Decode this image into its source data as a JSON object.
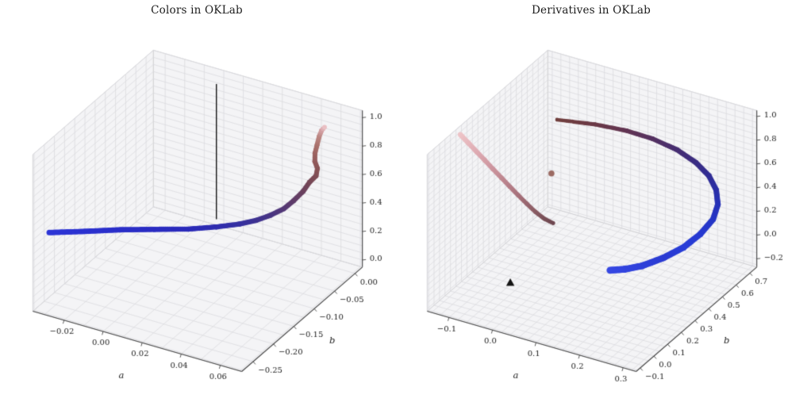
{
  "style": {
    "background": "#ffffff",
    "pane": "#f4f4f6",
    "pane_edge": "#cccccf",
    "grid": "#dadade",
    "spine": "#454545",
    "tick_text": "#1a1a1a",
    "title_text": "#1c1c1c"
  },
  "chart_data": [
    {
      "id": "colors",
      "type": "scatter",
      "subtype": "3d-scatter-curve",
      "title": "Colors in OKLab",
      "axes": {
        "x": {
          "label": "a",
          "lim": [
            -0.036,
            0.071
          ],
          "ticks": [
            -0.02,
            0.0,
            0.02,
            0.04,
            0.06
          ],
          "tick_labels": [
            "−0.02",
            "0.00",
            "0.02",
            "0.04",
            "0.06"
          ],
          "grid_step": 0.01
        },
        "y": {
          "label": "b",
          "lim": [
            -0.278,
            0.018
          ],
          "ticks": [
            0.0,
            -0.05,
            -0.1,
            -0.15,
            -0.2,
            -0.25
          ],
          "tick_labels": [
            "0.00",
            "−0.05",
            "−0.10",
            "−0.15",
            "−0.20",
            "−0.25"
          ],
          "grid_step": 0.025
        },
        "z": {
          "label": "",
          "lim": [
            -0.05,
            1.05
          ],
          "ticks": [
            0.0,
            0.2,
            0.4,
            0.6,
            0.8,
            1.0
          ],
          "tick_labels": [
            "0.0",
            "0.2",
            "0.4",
            "0.6",
            "0.8",
            "1.0"
          ],
          "grid_step": 0.05
        }
      },
      "series": [
        {
          "name": "gray-axis-line",
          "type": "line",
          "color": "#151515",
          "width": 1.4,
          "points": [
            [
              0.0,
              0.0,
              0.05
            ],
            [
              0.0,
              0.0,
              1.0
            ]
          ]
        },
        {
          "name": "gradient-curve",
          "type": "tube",
          "radius": [
            3.5,
            3.0
          ],
          "points": [
            [
              -0.033,
              -0.252,
              0.45,
              "#2d35d6"
            ],
            [
              -0.02,
              -0.228,
              0.45,
              "#2b31d0"
            ],
            [
              -0.007,
              -0.203,
              0.451,
              "#2a2ec9"
            ],
            [
              0.006,
              -0.181,
              0.451,
              "#2a2cc2"
            ],
            [
              0.019,
              -0.16,
              0.452,
              "#2b2bba"
            ],
            [
              0.029,
              -0.139,
              0.455,
              "#2f2daf"
            ],
            [
              0.037,
              -0.12,
              0.46,
              "#3530a2"
            ],
            [
              0.044,
              -0.114,
              0.498,
              "#3d3293"
            ],
            [
              0.05,
              -0.108,
              0.542,
              "#473585"
            ],
            [
              0.056,
              -0.103,
              0.6,
              "#533877"
            ],
            [
              0.06,
              -0.098,
              0.66,
              "#5f3c6a"
            ],
            [
              0.062,
              -0.084,
              0.7,
              "#6a415f"
            ],
            [
              0.0625,
              -0.071,
              0.733,
              "#754757"
            ],
            [
              0.064,
              -0.062,
              0.762,
              "#7f4d56"
            ],
            [
              0.063,
              -0.054,
              0.79,
              "#885356"
            ],
            [
              0.06,
              -0.046,
              0.808,
              "#91595a"
            ],
            [
              0.058,
              -0.036,
              0.832,
              "#9c6361"
            ],
            [
              0.057,
              -0.026,
              0.862,
              "#a9706b"
            ],
            [
              0.056,
              -0.016,
              0.893,
              "#ba8580"
            ],
            [
              0.0555,
              -0.008,
              0.912,
              "#d09da0"
            ],
            [
              0.056,
              -0.003,
              0.925,
              "#e9bfc3"
            ]
          ]
        }
      ]
    },
    {
      "id": "derivatives",
      "type": "scatter",
      "subtype": "3d-scatter-curve",
      "title": "Derivatives in OKLab",
      "axes": {
        "x": {
          "label": "a",
          "lim": [
            -0.15,
            0.33
          ],
          "ticks": [
            -0.1,
            0.0,
            0.1,
            0.2,
            0.3
          ],
          "tick_labels": [
            "−0.1",
            "0.0",
            "0.1",
            "0.2",
            "0.3"
          ],
          "grid_step": 0.02
        },
        "y": {
          "label": "b",
          "lim": [
            -0.13,
            0.75
          ],
          "ticks": [
            -0.1,
            0.0,
            0.1,
            0.2,
            0.3,
            0.4,
            0.5,
            0.6,
            0.7
          ],
          "tick_labels": [
            "−0.1",
            "0.0",
            "0.1",
            "0.2",
            "0.3",
            "0.4",
            "0.5",
            "0.6",
            "0.7"
          ],
          "grid_step": 0.04
        },
        "z": {
          "label": "",
          "lim": [
            -0.27,
            1.05
          ],
          "ticks": [
            -0.2,
            0.0,
            0.2,
            0.4,
            0.6,
            0.8,
            1.0
          ],
          "tick_labels": [
            "−0.2",
            "0.0",
            "0.2",
            "0.4",
            "0.6",
            "0.8",
            "1.0"
          ],
          "grid_step": 0.05
        }
      },
      "series": [
        {
          "name": "pink-derivative-curve",
          "type": "tube",
          "radius": [
            3.2,
            2.6
          ],
          "points": [
            [
              -0.14,
              0.08,
              1.02,
              "#eec5c8"
            ],
            [
              -0.122,
              0.082,
              0.965,
              "#e7b9be"
            ],
            [
              -0.104,
              0.084,
              0.91,
              "#dfadb4"
            ],
            [
              -0.086,
              0.087,
              0.853,
              "#d6a1a9"
            ],
            [
              -0.068,
              0.09,
              0.795,
              "#cc959e"
            ],
            [
              -0.05,
              0.094,
              0.737,
              "#c18a93"
            ],
            [
              -0.032,
              0.098,
              0.678,
              "#b57e88"
            ],
            [
              -0.014,
              0.103,
              0.618,
              "#a8727c"
            ],
            [
              0.004,
              0.108,
              0.56,
              "#996770"
            ],
            [
              0.022,
              0.114,
              0.505,
              "#8a5c64"
            ],
            [
              0.04,
              0.121,
              0.46,
              "#7a5159"
            ],
            [
              0.058,
              0.128,
              0.435,
              "#6e4750"
            ]
          ]
        },
        {
          "name": "blue-derivative-curve",
          "type": "tube",
          "radius": [
            2.4,
            4.4
          ],
          "points": [
            [
              -0.05,
              0.5,
              0.82,
              "#713f3d"
            ],
            [
              0.02,
              0.555,
              0.8,
              "#6c3a47"
            ],
            [
              0.08,
              0.595,
              0.77,
              "#623553"
            ],
            [
              0.13,
              0.625,
              0.725,
              "#553160"
            ],
            [
              0.18,
              0.645,
              0.665,
              "#472e71"
            ],
            [
              0.22,
              0.655,
              0.59,
              "#3b2d82"
            ],
            [
              0.25,
              0.655,
              0.51,
              "#322d94"
            ],
            [
              0.27,
              0.645,
              0.42,
              "#2b2fa5"
            ],
            [
              0.28,
              0.625,
              0.33,
              "#2732b6"
            ],
            [
              0.28,
              0.59,
              0.24,
              "#2535c4"
            ],
            [
              0.265,
              0.545,
              0.145,
              "#2639d0"
            ],
            [
              0.24,
              0.5,
              0.05,
              "#293ed8"
            ],
            [
              0.205,
              0.465,
              -0.04,
              "#2a3bd2"
            ],
            [
              0.165,
              0.435,
              -0.12,
              "#2e40d9"
            ],
            [
              0.13,
              0.42,
              -0.17,
              "#3244de"
            ],
            [
              0.1,
              0.41,
              -0.2,
              "#3547e2"
            ]
          ]
        },
        {
          "name": "mean-dot-marker",
          "type": "point",
          "color": "#9c6b63",
          "size": 3.8,
          "point": [
            0.0,
            0.3,
            0.62
          ]
        },
        {
          "name": "origin-triangle-marker",
          "type": "triangle",
          "color": "#141414",
          "size": 5.5,
          "point": [
            0.0,
            0.0,
            0.0
          ]
        }
      ]
    }
  ]
}
